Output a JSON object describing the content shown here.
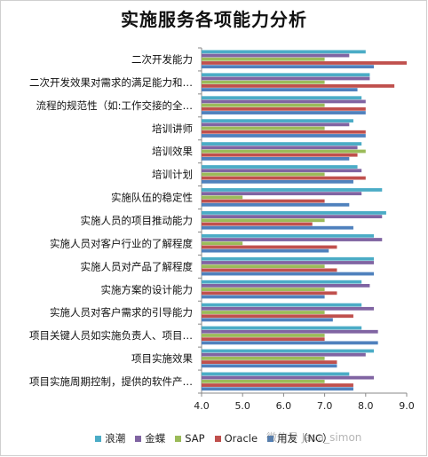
{
  "chart_data": {
    "type": "bar",
    "orientation": "horizontal",
    "title": "实施服务各项能力分析",
    "categories": [
      "二次开发能力",
      "二次开发效果对需求的满足能力和…",
      "流程的规范性（如:工作交接的全…",
      "培训讲师",
      "培训效果",
      "培训计划",
      "实施队伍的稳定性",
      "实施人员的项目推动能力",
      "实施人员对客户行业的了解程度",
      "实施人员对产品了解程度",
      "实施方案的设计能力",
      "实施人员对客户需求的引导能力",
      "项目关键人员如实施负责人、项目…",
      "项目实施效果",
      "项目实施周期控制，提供的软件产…"
    ],
    "series": [
      {
        "name": "浪潮",
        "color": "#4bacc6",
        "values": [
          8.0,
          8.1,
          7.9,
          7.7,
          7.9,
          7.8,
          8.4,
          8.5,
          8.2,
          8.2,
          7.9,
          7.9,
          7.9,
          8.2,
          7.6
        ]
      },
      {
        "name": "金蝶",
        "color": "#8064a2",
        "values": [
          7.6,
          8.1,
          8.0,
          7.6,
          7.8,
          7.9,
          7.9,
          8.4,
          8.4,
          8.2,
          8.1,
          8.2,
          8.3,
          8.0,
          8.2
        ]
      },
      {
        "name": "SAP",
        "color": "#9bbb59",
        "values": [
          7.0,
          7.0,
          7.0,
          7.0,
          8.0,
          7.0,
          5.0,
          7.0,
          5.0,
          7.0,
          7.0,
          7.0,
          7.0,
          7.0,
          7.0
        ]
      },
      {
        "name": "Oracle",
        "color": "#c0504d",
        "values": [
          9.0,
          8.7,
          8.0,
          8.0,
          7.8,
          8.0,
          7.0,
          6.7,
          7.3,
          7.3,
          7.3,
          7.7,
          7.0,
          7.3,
          7.7
        ]
      },
      {
        "name": "用友（NC）",
        "color": "#4f81bd",
        "values": [
          8.2,
          7.8,
          8.0,
          8.0,
          7.6,
          7.7,
          7.6,
          7.7,
          7.1,
          8.2,
          7.0,
          7.2,
          8.3,
          7.3,
          7.7
        ]
      }
    ],
    "xlim": [
      4.0,
      9.0
    ],
    "x_ticks": [
      "4.0",
      "5.0",
      "6.0",
      "7.0",
      "8.0",
      "9.0"
    ],
    "grid": false,
    "legend_position": "bottom"
  },
  "watermark": "微信号 Java_simon"
}
